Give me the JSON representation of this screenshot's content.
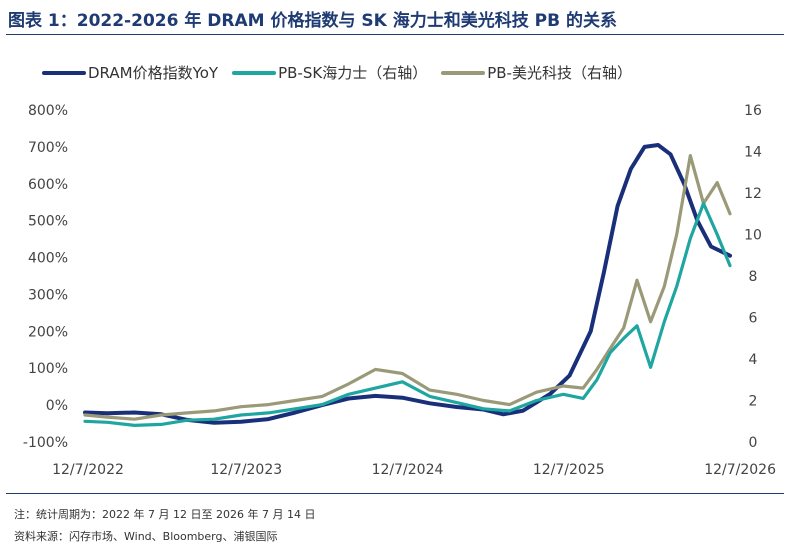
{
  "header": {
    "title": "图表 1：2022-2026 年 DRAM 价格指数与 SK 海力士和美光科技 PB 的关系"
  },
  "footer": {
    "note": "注：统计周期为：2022 年 7 月 12 日至 2026 年 7 月 14 日",
    "source": "资料来源：闪存市场、Wind、Bloomberg、浦银国际"
  },
  "chart_data": {
    "type": "line",
    "title": "图表 1：2022-2026 年 DRAM 价格指数与 SK 海力士和美光科技 PB 的关系",
    "x_range": [
      "2022-07-12",
      "2026-07-14"
    ],
    "x_ticks": [
      "12/7/2022",
      "12/7/2023",
      "12/7/2024",
      "12/7/2025",
      "12/7/2026"
    ],
    "y_left": {
      "min": -100,
      "max": 800,
      "unit": "%",
      "ticks": [
        "-100%",
        "0%",
        "100%",
        "200%",
        "300%",
        "400%",
        "500%",
        "600%",
        "700%",
        "800%"
      ]
    },
    "y_right": {
      "min": 0,
      "max": 16,
      "ticks": [
        "0",
        "2",
        "4",
        "6",
        "8",
        "10",
        "12",
        "14",
        "16"
      ]
    },
    "grid": false,
    "legend_position": "top",
    "series": [
      {
        "name": "DRAM价格指数YoY",
        "axis": "left",
        "color": "#1a2f7a",
        "points": [
          [
            "2022-07-12",
            -20
          ],
          [
            "2022-09-01",
            -22
          ],
          [
            "2022-11-01",
            -20
          ],
          [
            "2023-01-01",
            -25
          ],
          [
            "2023-03-01",
            -40
          ],
          [
            "2023-05-01",
            -48
          ],
          [
            "2023-07-01",
            -45
          ],
          [
            "2023-09-01",
            -38
          ],
          [
            "2023-11-01",
            -20
          ],
          [
            "2024-01-01",
            0
          ],
          [
            "2024-03-01",
            18
          ],
          [
            "2024-05-01",
            25
          ],
          [
            "2024-07-01",
            20
          ],
          [
            "2024-09-01",
            5
          ],
          [
            "2024-11-01",
            -5
          ],
          [
            "2025-01-01",
            -12
          ],
          [
            "2025-02-15",
            -25
          ],
          [
            "2025-04-01",
            -15
          ],
          [
            "2025-06-01",
            30
          ],
          [
            "2025-07-15",
            80
          ],
          [
            "2025-09-01",
            200
          ],
          [
            "2025-10-01",
            360
          ],
          [
            "2025-11-01",
            540
          ],
          [
            "2025-12-01",
            640
          ],
          [
            "2026-01-01",
            700
          ],
          [
            "2026-02-01",
            705
          ],
          [
            "2026-03-01",
            680
          ],
          [
            "2026-04-01",
            600
          ],
          [
            "2026-05-01",
            500
          ],
          [
            "2026-06-01",
            430
          ],
          [
            "2026-07-14",
            405
          ]
        ]
      },
      {
        "name": "PB-SK海力士（右轴）",
        "axis": "right",
        "color": "#1fa6a0",
        "points": [
          [
            "2022-07-12",
            1.0
          ],
          [
            "2022-09-01",
            0.95
          ],
          [
            "2022-11-01",
            0.8
          ],
          [
            "2023-01-01",
            0.85
          ],
          [
            "2023-03-01",
            1.05
          ],
          [
            "2023-05-01",
            1.1
          ],
          [
            "2023-07-01",
            1.3
          ],
          [
            "2023-09-01",
            1.4
          ],
          [
            "2023-11-01",
            1.6
          ],
          [
            "2024-01-01",
            1.8
          ],
          [
            "2024-03-01",
            2.3
          ],
          [
            "2024-05-01",
            2.6
          ],
          [
            "2024-07-01",
            2.9
          ],
          [
            "2024-09-01",
            2.2
          ],
          [
            "2024-11-01",
            1.9
          ],
          [
            "2025-01-01",
            1.6
          ],
          [
            "2025-03-01",
            1.5
          ],
          [
            "2025-05-01",
            2.0
          ],
          [
            "2025-07-01",
            2.3
          ],
          [
            "2025-08-15",
            2.1
          ],
          [
            "2025-09-15",
            3.0
          ],
          [
            "2025-10-15",
            4.3
          ],
          [
            "2025-11-15",
            5.0
          ],
          [
            "2025-12-15",
            5.6
          ],
          [
            "2026-01-15",
            3.6
          ],
          [
            "2026-02-15",
            5.8
          ],
          [
            "2026-03-15",
            7.5
          ],
          [
            "2026-04-15",
            9.8
          ],
          [
            "2026-05-15",
            11.5
          ],
          [
            "2026-06-15",
            10.0
          ],
          [
            "2026-07-14",
            8.5
          ]
        ]
      },
      {
        "name": "PB-美光科技（右轴）",
        "axis": "right",
        "color": "#9a9a78",
        "points": [
          [
            "2022-07-12",
            1.3
          ],
          [
            "2022-09-01",
            1.2
          ],
          [
            "2022-11-01",
            1.1
          ],
          [
            "2023-01-01",
            1.3
          ],
          [
            "2023-03-01",
            1.4
          ],
          [
            "2023-05-01",
            1.5
          ],
          [
            "2023-07-01",
            1.7
          ],
          [
            "2023-09-01",
            1.8
          ],
          [
            "2023-11-01",
            2.0
          ],
          [
            "2024-01-01",
            2.2
          ],
          [
            "2024-03-01",
            2.8
          ],
          [
            "2024-05-01",
            3.5
          ],
          [
            "2024-07-01",
            3.3
          ],
          [
            "2024-09-01",
            2.5
          ],
          [
            "2024-11-01",
            2.3
          ],
          [
            "2025-01-01",
            2.0
          ],
          [
            "2025-03-01",
            1.8
          ],
          [
            "2025-05-01",
            2.4
          ],
          [
            "2025-07-01",
            2.7
          ],
          [
            "2025-08-15",
            2.6
          ],
          [
            "2025-09-15",
            3.5
          ],
          [
            "2025-10-15",
            4.5
          ],
          [
            "2025-11-15",
            5.5
          ],
          [
            "2025-12-15",
            7.8
          ],
          [
            "2026-01-15",
            5.8
          ],
          [
            "2026-02-15",
            7.5
          ],
          [
            "2026-03-15",
            10.0
          ],
          [
            "2026-04-15",
            13.8
          ],
          [
            "2026-05-15",
            11.5
          ],
          [
            "2026-06-15",
            12.5
          ],
          [
            "2026-07-14",
            11.0
          ]
        ]
      }
    ]
  }
}
